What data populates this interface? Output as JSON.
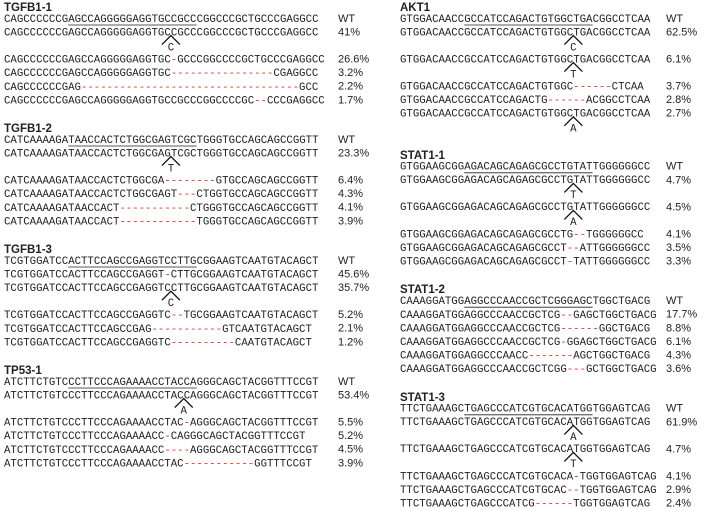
{
  "columns": [
    [
      {
        "title": "TGFB1-1",
        "wt": {
          "prefix": "CAGCCCCCCG",
          "guide": "AGCCAGGGGGAGGTGCCGCC",
          "pam": "CGG",
          "suffix": "CCCGCTGCCCGAGGCC",
          "label": "WT"
        },
        "rows": [
          {
            "before": "CAGCCCCCCGAGCCAGGGGGAGGTGC",
            "insert": "C",
            "after": "CGCCCGGCCCGCTGCCCGAGGCC",
            "pct": "41%"
          },
          {
            "seq": "CAGCCCCCCGAGCCAGGGGGAGGTGC-GCCCGGCCCCGCTGCCCGAGGCC",
            "pct": "26.6%"
          },
          {
            "seq": "CAGCCCCCCGAGCCAGGGGGAGGTGC----------------CGAGGCC",
            "pct": "3.2%"
          },
          {
            "seq": "CAGCCCCCCGAG----------------------------------GCC",
            "pct": "2.2%"
          },
          {
            "seq": "CAGCCCCCCGAGCCAGGGGGAGGTGCCGCCCGGCCCCGC--CCCGAGGCC",
            "pct": "1.7%"
          }
        ]
      },
      {
        "title": "TGFB1-2",
        "wt": {
          "prefix": "CATCAAAAGA",
          "guide": "TAACCACTCTGGCGAGTCGC",
          "pam": "TGG",
          "suffix": "GTGCCAGCAGCCGGTT",
          "label": "WT"
        },
        "rows": [
          {
            "before": "CATCAAAAGATAACCACTCTGGCGAG",
            "insert": "T",
            "after": "TCGCTGGGTGCCAGCAGCCGGTT",
            "pct": "23.3%"
          },
          {
            "seq": "CATCAAAAGATAACCACTCTGGCGA--------GTGCCAGCAGCCGGTT",
            "pct": "6.4%"
          },
          {
            "seq": "CATCAAAAGATAACCACTCTGGCGAGT---CTGGTGCCAGCAGCCGGTT",
            "pct": "4.3%"
          },
          {
            "seq": "CATCAAAAGATAACCACT-----------CTGGGTGCCAGCAGCCGGTT",
            "pct": "4.1%"
          },
          {
            "seq": "CATCAAAAGATAACCACT------------TGGGTGCCAGCAGCCGGTT",
            "pct": "3.9%"
          }
        ]
      },
      {
        "title": "TGFB1-3",
        "wt": {
          "prefix": "TCGTGGATCC",
          "guide": "ACTTCCAGCCGAGGTCCTTG",
          "pam": "CGG",
          "suffix": "AAGTCAATGTACAGCT",
          "label": "WT"
        },
        "rows": [
          {
            "seq": "TCGTGGATCCACTTCCAGCCGAGGT-CTTGCGGAAGTCAATGTACAGCT",
            "pct": "45.6%"
          },
          {
            "before": "TCGTGGATCCACTTCCAGCCGAGGTC",
            "insert": "C",
            "after": "CTTGCGGAAGTCAATGTACAGCT",
            "pct": "35.7%"
          },
          {
            "seq": "TCGTGGATCCACTTCCAGCCGAGGTC--TGCGGAAGTCAATGTACAGCT",
            "pct": "5.2%"
          },
          {
            "seq": "TCGTGGATCCACTTCCAGCCGAG-----------GTCAATGTACAGCT",
            "pct": "2.1%"
          },
          {
            "seq": "TCGTGGATCCACTTCCAGCCGAGGTC----------CAATGTACAGCT",
            "pct": "1.2%"
          }
        ]
      },
      {
        "title": "TP53-1",
        "wt": {
          "prefix": "ATCTTCTGTC",
          "guide": "CCTTCCCAGAAAACCTACCA",
          "pam": "GGG",
          "suffix": "CAGCTACGGTTTCCGT",
          "label": "WT"
        },
        "rows": [
          {
            "before": "ATCTTCTGTCCCTTCCCAGAAAACCTAC",
            "insert": "A",
            "after": "CAGGGCAGCTACGGTTTCCGT",
            "pct": "53.4%"
          },
          {
            "seq": "ATCTTCTGTCCCTTCCCAGAAAACCTAC-AGGGCAGCTACGGTTTCCGT",
            "pct": "5.5%"
          },
          {
            "seq": "ATCTTCTGTCCCTTCCCAGAAAACC-CAGGGCAGCTACGGTTTCCGT",
            "pct": "5.2%"
          },
          {
            "seq": "ATCTTCTGTCCCTTCCCAGAAAACC----AGGGCAGCTACGGTTTCCGT",
            "pct": "4.5%"
          },
          {
            "seq": "ATCTTCTGTCCCTTCCCAGAAAACCTAC-----------GGTTTCCGT",
            "pct": "3.9%"
          }
        ]
      }
    ],
    [
      {
        "title": "AKT1",
        "wt": {
          "prefix": "GTGGACAACC",
          "guide": "GCCATCCAGACTGTGGCTGA",
          "pam": "CGG",
          "suffix": "CCTCAA",
          "label": "WT"
        },
        "rows": [
          {
            "before": "GTGGACAACCGCCATCCAGACTGTGGC",
            "insert": "C",
            "after": "TGACGGCCTCAA",
            "pct": "62.5%"
          },
          {
            "before": "GTGGACAACCGCCATCCAGACTGTGGC",
            "insert": "T",
            "after": "TGACGGCCTCAA",
            "pct": "6.1%"
          },
          {
            "seq": "GTGGACAACCGCCATCCAGACTGTGGC------CTCAA",
            "pct": "3.7%"
          },
          {
            "seq": "GTGGACAACCGCCATCCAGACTG------ACGGCCTCAA",
            "pct": "2.8%"
          },
          {
            "before": "GTGGACAACCGCCATCCAGACTGTGGC",
            "insert": "A",
            "after": "TGACGGCCTCAA",
            "pct": "2.7%"
          }
        ]
      },
      {
        "title": "STAT1-1",
        "wt": {
          "prefix": "GTGGAAGCGG",
          "guide": "AGACAGCAGAGCGCCTGTAT",
          "pam": "TGG",
          "suffix": "GGGGCC",
          "label": "WT"
        },
        "rows": [
          {
            "before": "GTGGAAGCGGAGACAGCAGAGCGCCTG",
            "insert": "T",
            "after": "TATTGGGGGGCC",
            "pct": "4.7%"
          },
          {
            "before": "GTGGAAGCGGAGACAGCAGAGCGCCTG",
            "insert": "A",
            "after": "TATTGGGGGGCC",
            "pct": "4.5%"
          },
          {
            "seq": "GTGGAAGCGGAGACAGCAGAGCGCCTG--TGGGGGGCC",
            "pct": "4.1%"
          },
          {
            "seq": "GTGGAAGCGGAGACAGCAGAGCGCCT--ATTGGGGGGCC",
            "pct": "3.5%"
          },
          {
            "seq": "GTGGAAGCGGAGACAGCAGAGCGCCT-TATTGGGGGGCC",
            "pct": "3.3%"
          }
        ]
      },
      {
        "title": "STAT1-2",
        "wt": {
          "prefix": "CAAAGGATGG",
          "guide": "AGGCCCAACCGCTCGGGAGC",
          "pam": "TGG",
          "suffix": "CTGACG",
          "label": "WT"
        },
        "rows": [
          {
            "seq": "CAAAGGATGGAGGCCCAACCGCTCG--GAGCTGGCTGACG",
            "pct": "17.7%"
          },
          {
            "seq": "CAAAGGATGGAGGCCCAACCGCTCG------GGCTGACG",
            "pct": "8.8%"
          },
          {
            "seq": "CAAAGGATGGAGGCCCAACCGCTCG-GGAGCTGGCTGACG",
            "pct": "6.1%"
          },
          {
            "seq": "CAAAGGATGGAGGCCCAACC-------AGCTGGCTGACG",
            "pct": "4.3%"
          },
          {
            "seq": "CAAAGGATGGAGGCCCAACCGCTCGG---GCTGGCTGACG",
            "pct": "3.6%"
          }
        ]
      },
      {
        "title": "STAT1-3",
        "wt": {
          "prefix": "TTCTGAAAGC",
          "guide": "TGAGCCCATCGTGCACATGG",
          "pam": "TGG",
          "suffix": "AGTCAG",
          "label": "WT"
        },
        "rows": [
          {
            "before": "TTCTGAAAGCTGAGCCCATCGTGCACA",
            "insert": "A",
            "after": "TGGTGGAGTCAG",
            "pct": "61.9%"
          },
          {
            "before": "TTCTGAAAGCTGAGCCCATCGTGCACA",
            "insert": "T",
            "after": "TGGTGGAGTCAG",
            "pct": "4.7%"
          },
          {
            "seq": "TTCTGAAAGCTGAGCCCATCGTGCACA-TGGTGGAGTCAG",
            "pct": "4.1%"
          },
          {
            "seq": "TTCTGAAAGCTGAGCCCATCGTGCAC--TGGTGGAGTCAG",
            "pct": "2.9%"
          },
          {
            "seq": "TTCTGAAAGCTGAGCCCATCG------TGGTGGAGTCAG",
            "pct": "2.4%"
          }
        ]
      }
    ]
  ]
}
